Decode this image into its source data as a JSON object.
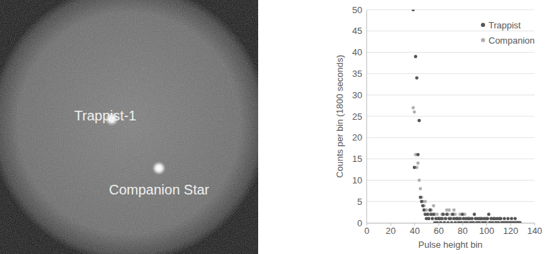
{
  "image_panel": {
    "labels": [
      "Trappist-1",
      "Companion Star"
    ]
  },
  "chart_data": {
    "type": "scatter",
    "x_label": "Pulse height bin",
    "y_label": "Counts per bin (1800 seconds)",
    "x": [
      39,
      40,
      41,
      42,
      43,
      44,
      45,
      46,
      47,
      48,
      49,
      50,
      51,
      52,
      53,
      54,
      55,
      56,
      57,
      58,
      59,
      60,
      61,
      62,
      63,
      64,
      65,
      66,
      67,
      68,
      69,
      70,
      71,
      72,
      73,
      74,
      75,
      76,
      77,
      78,
      79,
      80,
      81,
      82,
      83,
      84,
      85,
      86,
      87,
      88,
      89,
      90,
      91,
      92,
      93,
      94,
      95,
      96,
      97,
      98,
      99,
      100,
      101,
      102,
      103,
      104,
      105,
      106,
      107,
      108,
      109,
      110,
      111,
      112,
      113,
      114,
      115,
      116,
      117,
      118,
      119,
      120,
      121,
      122,
      123,
      124,
      125,
      126,
      127,
      128
    ],
    "series": [
      {
        "name": "Trappist",
        "color": "#555555",
        "marker": "circle",
        "values": [
          50,
          13,
          39,
          34,
          16,
          24,
          6,
          5,
          4,
          3,
          2,
          1,
          2,
          1,
          3,
          2,
          1,
          2,
          0,
          1,
          0,
          1,
          1,
          0,
          1,
          2,
          0,
          1,
          2,
          0,
          1,
          1,
          0,
          2,
          1,
          0,
          1,
          1,
          0,
          1,
          0,
          2,
          1,
          0,
          1,
          0,
          1,
          1,
          0,
          1,
          0,
          2,
          1,
          0,
          1,
          0,
          1,
          1,
          0,
          1,
          0,
          1,
          1,
          2,
          0,
          1,
          0,
          1,
          1,
          0,
          1,
          0,
          1,
          1,
          0,
          0,
          1,
          0,
          0,
          1,
          0,
          0,
          1,
          0,
          0,
          1,
          0,
          0,
          0,
          0
        ]
      },
      {
        "name": "Companion",
        "color": "#b0b0b0",
        "marker": "circle",
        "values": [
          27,
          26,
          16,
          13,
          14,
          10,
          8,
          6,
          5,
          4,
          5,
          3,
          2,
          1,
          2,
          3,
          1,
          4,
          2,
          1,
          2,
          1,
          0,
          1,
          2,
          1,
          0,
          1,
          3,
          2,
          3,
          1,
          2,
          1,
          3,
          2,
          1,
          0,
          1,
          2,
          1,
          0,
          1,
          2,
          0,
          1,
          1,
          0,
          0,
          1,
          0,
          0,
          1,
          0,
          0,
          1,
          0,
          0,
          0,
          0,
          1,
          0,
          0,
          0,
          0,
          1,
          0,
          0,
          0,
          0,
          0,
          0,
          1,
          0,
          0,
          0,
          0,
          0,
          0,
          0,
          0,
          0,
          0,
          0,
          0,
          0,
          0,
          0,
          0,
          0
        ]
      }
    ],
    "xlim": [
      0,
      140
    ],
    "xticks": [
      0,
      20,
      40,
      60,
      80,
      100,
      120,
      140
    ],
    "ylim": [
      0,
      50
    ],
    "yticks": [
      0,
      5,
      10,
      15,
      20,
      25,
      30,
      35,
      40,
      45,
      50
    ],
    "grid": true,
    "legend": "top-right"
  }
}
